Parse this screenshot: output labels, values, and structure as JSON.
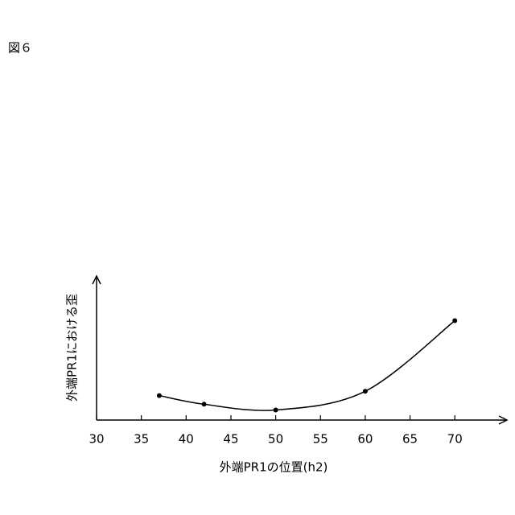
{
  "figure_label": "図６",
  "chart_data": {
    "type": "line",
    "x_label": "外端PR1の位置(h2)",
    "y_label": "外端PR1における歪",
    "x": [
      37,
      42,
      50,
      60,
      70
    ],
    "series": [
      {
        "color": "#000000",
        "values": [
          17,
          11,
          7,
          20,
          69
        ]
      }
    ],
    "xlim": [
      30,
      76
    ],
    "xticks": [
      30,
      35,
      40,
      45,
      50,
      55,
      60,
      65,
      70
    ],
    "ylim": [
      0,
      100
    ],
    "smooth": true,
    "markers": true
  }
}
